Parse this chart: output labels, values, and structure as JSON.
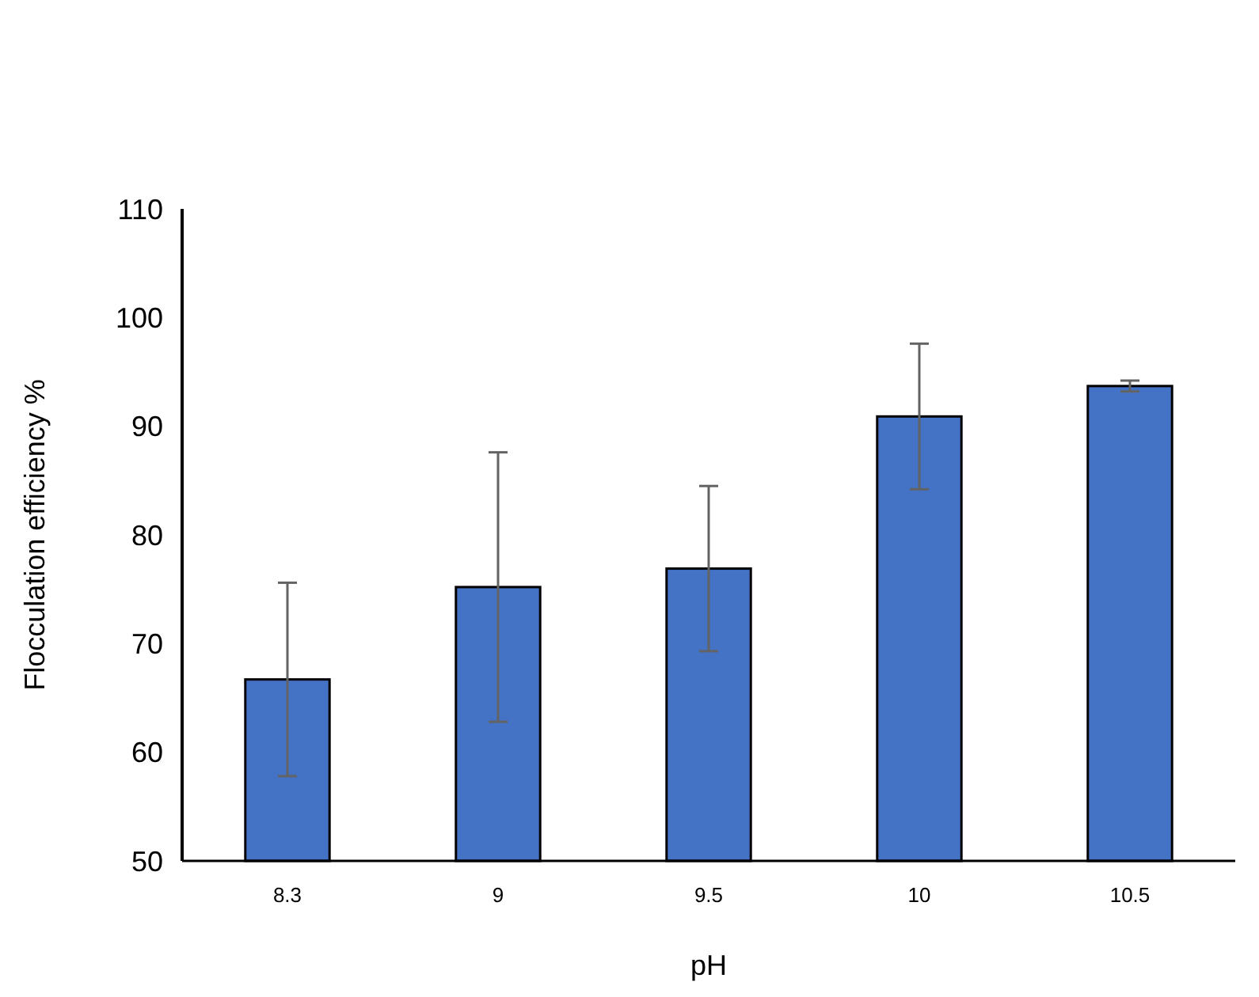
{
  "chart_data": {
    "type": "bar",
    "xlabel": "pH",
    "ylabel": "Flocculation efficiency %",
    "categories": [
      "8.3",
      "9",
      "9.5",
      "10",
      "10.5"
    ],
    "values": [
      66.7,
      75.2,
      76.9,
      90.9,
      93.7
    ],
    "errors": [
      8.9,
      12.4,
      7.6,
      6.7,
      0.5
    ],
    "color": "#4472c4",
    "ylim": [
      50,
      110
    ],
    "yticks": [
      50,
      60,
      70,
      80,
      90,
      100,
      110
    ],
    "grid": false
  }
}
